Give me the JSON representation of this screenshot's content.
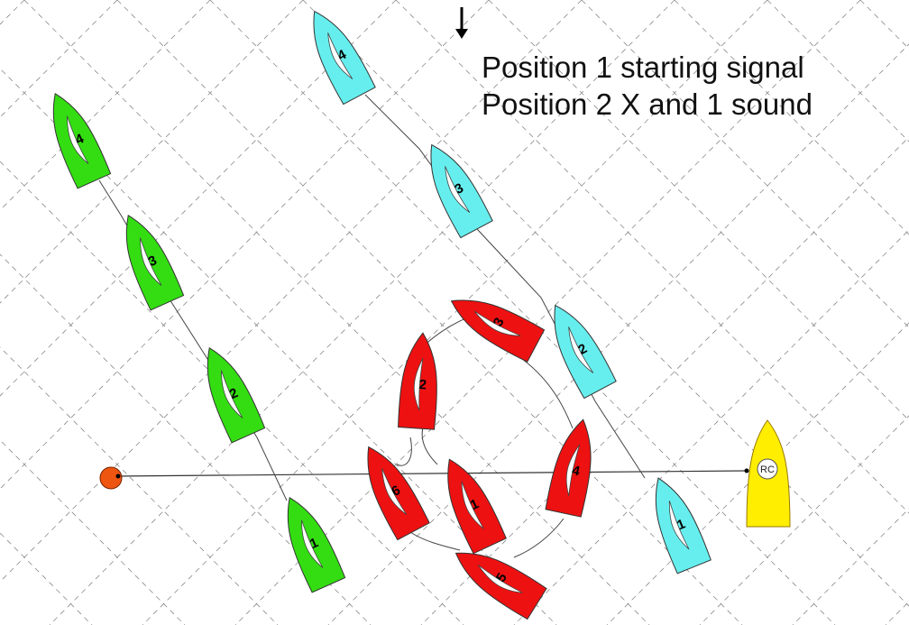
{
  "caption": {
    "line1": "Position 1 starting signal",
    "line2": "Position 2 X and 1 sound"
  },
  "committee_boat": {
    "label": "RC",
    "color": "#ffee00"
  },
  "pin_mark": {
    "color": "#ee5511"
  },
  "wind_arrow": {
    "icon": "down-arrow-icon"
  },
  "boats": [
    {
      "fleet": "green",
      "color": "#33dd11",
      "positions": [
        "4",
        "3",
        "2",
        "1"
      ]
    },
    {
      "fleet": "cyan",
      "color": "#66eeee",
      "positions": [
        "4",
        "3",
        "2",
        "1"
      ]
    },
    {
      "fleet": "red",
      "color": "#ee1111",
      "positions": [
        "3",
        "2",
        "4",
        "6",
        "1",
        "5"
      ]
    }
  ]
}
